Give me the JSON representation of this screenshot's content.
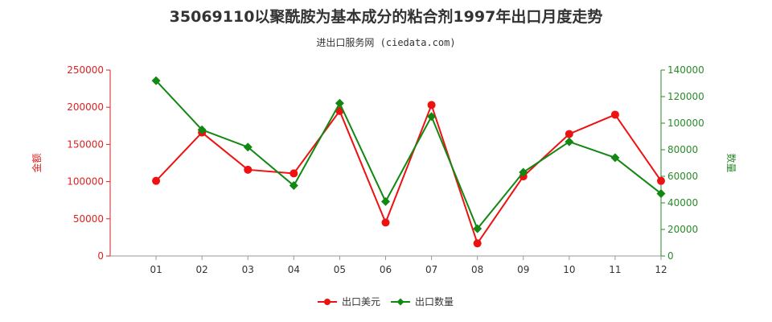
{
  "chart_data": {
    "type": "line",
    "title": "35069110以聚酰胺为基本成分的粘合剂1997年出口月度走势",
    "subtitle": "进出口服务网 (ciedata.com)",
    "categories": [
      "01",
      "02",
      "03",
      "04",
      "05",
      "06",
      "07",
      "08",
      "09",
      "10",
      "11",
      "12"
    ],
    "y_left": {
      "label": "金额",
      "ylim": [
        0,
        250000
      ],
      "ticks": [
        0,
        50000,
        100000,
        150000,
        200000,
        250000
      ],
      "color": "#dd2222"
    },
    "y_right": {
      "label": "数量",
      "ylim": [
        0,
        140000
      ],
      "ticks": [
        0,
        20000,
        40000,
        60000,
        80000,
        100000,
        120000,
        140000
      ],
      "color": "#2a8a2a"
    },
    "series": [
      {
        "name": "出口美元",
        "axis": "left",
        "color": "#ee1111",
        "marker": "circle",
        "values": [
          101000,
          166000,
          116000,
          111000,
          195000,
          45000,
          203000,
          17000,
          107000,
          164000,
          190000,
          101000
        ]
      },
      {
        "name": "出口数量",
        "axis": "right",
        "color": "#118811",
        "marker": "diamond",
        "values": [
          132000,
          95000,
          82000,
          53000,
          115000,
          41000,
          105000,
          20500,
          63000,
          86000,
          74000,
          47000
        ]
      }
    ],
    "legend_position": "bottom-center",
    "grid": false
  }
}
